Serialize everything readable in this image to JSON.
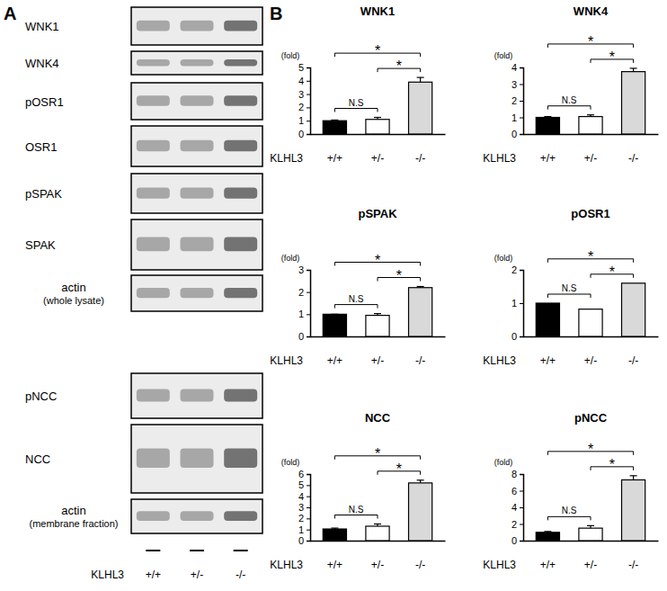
{
  "panel_labels": [
    "A",
    "B"
  ],
  "blot": {
    "rows": [
      {
        "label": [
          "WNK1"
        ]
      },
      {
        "label": [
          "WNK4"
        ]
      },
      {
        "label": [
          "pOSR1"
        ]
      },
      {
        "label": [
          "OSR1"
        ]
      },
      {
        "label": [
          "pSPAK"
        ]
      },
      {
        "label": [
          "SPAK"
        ]
      },
      {
        "label": [
          "actin",
          "(whole lysate)"
        ]
      },
      {
        "label": [
          "pNCC"
        ]
      },
      {
        "label": [
          "NCC"
        ]
      },
      {
        "label": [
          "actin",
          "(membrane fraction)"
        ]
      }
    ],
    "genotype_label": "KLHL3",
    "lanes": [
      "+/+",
      "+/-",
      "-/-"
    ]
  },
  "chart_data": [
    {
      "type": "bar",
      "title": "WNK1",
      "y_label": "(fold)",
      "x_label": "KLHL3",
      "categories": [
        "+/+",
        "+/-",
        "-/-"
      ],
      "values": [
        1,
        1.1,
        3.9
      ],
      "errors": [
        0.05,
        0.15,
        0.35
      ],
      "colors": [
        "#000000",
        "#ffffff",
        "#d9d9d9"
      ],
      "ylim": [
        0,
        5
      ],
      "yticks": [
        0,
        1,
        2,
        3,
        4,
        5
      ],
      "annotations": [
        {
          "text": "N.S",
          "from": 0,
          "to": 1
        },
        {
          "text": "*",
          "from": 0,
          "to": 2
        },
        {
          "text": "*",
          "from": 1,
          "to": 2
        }
      ]
    },
    {
      "type": "bar",
      "title": "WNK4",
      "y_label": "(fold)",
      "x_label": "KLHL3",
      "categories": [
        "+/+",
        "+/-",
        "-/-"
      ],
      "values": [
        1,
        1.05,
        3.75
      ],
      "errors": [
        0.05,
        0.1,
        0.2
      ],
      "colors": [
        "#000000",
        "#ffffff",
        "#d9d9d9"
      ],
      "ylim": [
        0,
        4
      ],
      "yticks": [
        0,
        1,
        2,
        3,
        4
      ],
      "annotations": [
        {
          "text": "N.S",
          "from": 0,
          "to": 1
        },
        {
          "text": "*",
          "from": 0,
          "to": 2
        },
        {
          "text": "*",
          "from": 1,
          "to": 2
        }
      ]
    },
    {
      "type": "bar",
      "title": "pSPAK",
      "y_label": "(fold)",
      "x_label": "KLHL3",
      "categories": [
        "+/+",
        "+/-",
        "-/-"
      ],
      "values": [
        1,
        0.95,
        2.2
      ],
      "errors": [
        0,
        0.08,
        0.05
      ],
      "colors": [
        "#000000",
        "#ffffff",
        "#d9d9d9"
      ],
      "ylim": [
        0,
        3
      ],
      "yticks": [
        0,
        1,
        2,
        3
      ],
      "annotations": [
        {
          "text": "N.S",
          "from": 0,
          "to": 1
        },
        {
          "text": "*",
          "from": 0,
          "to": 2
        },
        {
          "text": "*",
          "from": 1,
          "to": 2
        }
      ]
    },
    {
      "type": "bar",
      "title": "pOSR1",
      "y_label": "(fold)",
      "x_label": "KLHL3",
      "categories": [
        "+/+",
        "+/-",
        "-/-"
      ],
      "values": [
        1,
        0.82,
        1.6
      ],
      "colors": [
        "#000000",
        "#ffffff",
        "#d9d9d9"
      ],
      "ylim": [
        0,
        2
      ],
      "yticks": [
        0,
        1,
        2
      ],
      "annotations": [
        {
          "text": "N.S",
          "from": 0,
          "to": 1
        },
        {
          "text": "*",
          "from": 0,
          "to": 2
        },
        {
          "text": "*",
          "from": 1,
          "to": 2
        }
      ]
    },
    {
      "type": "bar",
      "title": "NCC",
      "y_label": "(fold)",
      "x_label": "KLHL3",
      "categories": [
        "+/+",
        "+/-",
        "-/-"
      ],
      "values": [
        1.05,
        1.3,
        5.2
      ],
      "errors": [
        0.08,
        0.2,
        0.25
      ],
      "colors": [
        "#000000",
        "#ffffff",
        "#d9d9d9"
      ],
      "ylim": [
        0,
        6
      ],
      "yticks": [
        0,
        1,
        2,
        3,
        4,
        5,
        6
      ],
      "annotations": [
        {
          "text": "N.S",
          "from": 0,
          "to": 1
        },
        {
          "text": "*",
          "from": 0,
          "to": 2
        },
        {
          "text": "*",
          "from": 1,
          "to": 2
        }
      ]
    },
    {
      "type": "bar",
      "title": "pNCC",
      "y_label": "(fold)",
      "x_label": "KLHL3",
      "categories": [
        "+/+",
        "+/-",
        "-/-"
      ],
      "values": [
        1,
        1.5,
        7.3
      ],
      "errors": [
        0.1,
        0.3,
        0.5
      ],
      "colors": [
        "#000000",
        "#ffffff",
        "#d9d9d9"
      ],
      "ylim": [
        0,
        8
      ],
      "yticks": [
        0,
        2,
        4,
        6,
        8
      ],
      "annotations": [
        {
          "text": "N.S",
          "from": 0,
          "to": 1
        },
        {
          "text": "*",
          "from": 0,
          "to": 2
        },
        {
          "text": "*",
          "from": 1,
          "to": 2
        }
      ]
    }
  ]
}
